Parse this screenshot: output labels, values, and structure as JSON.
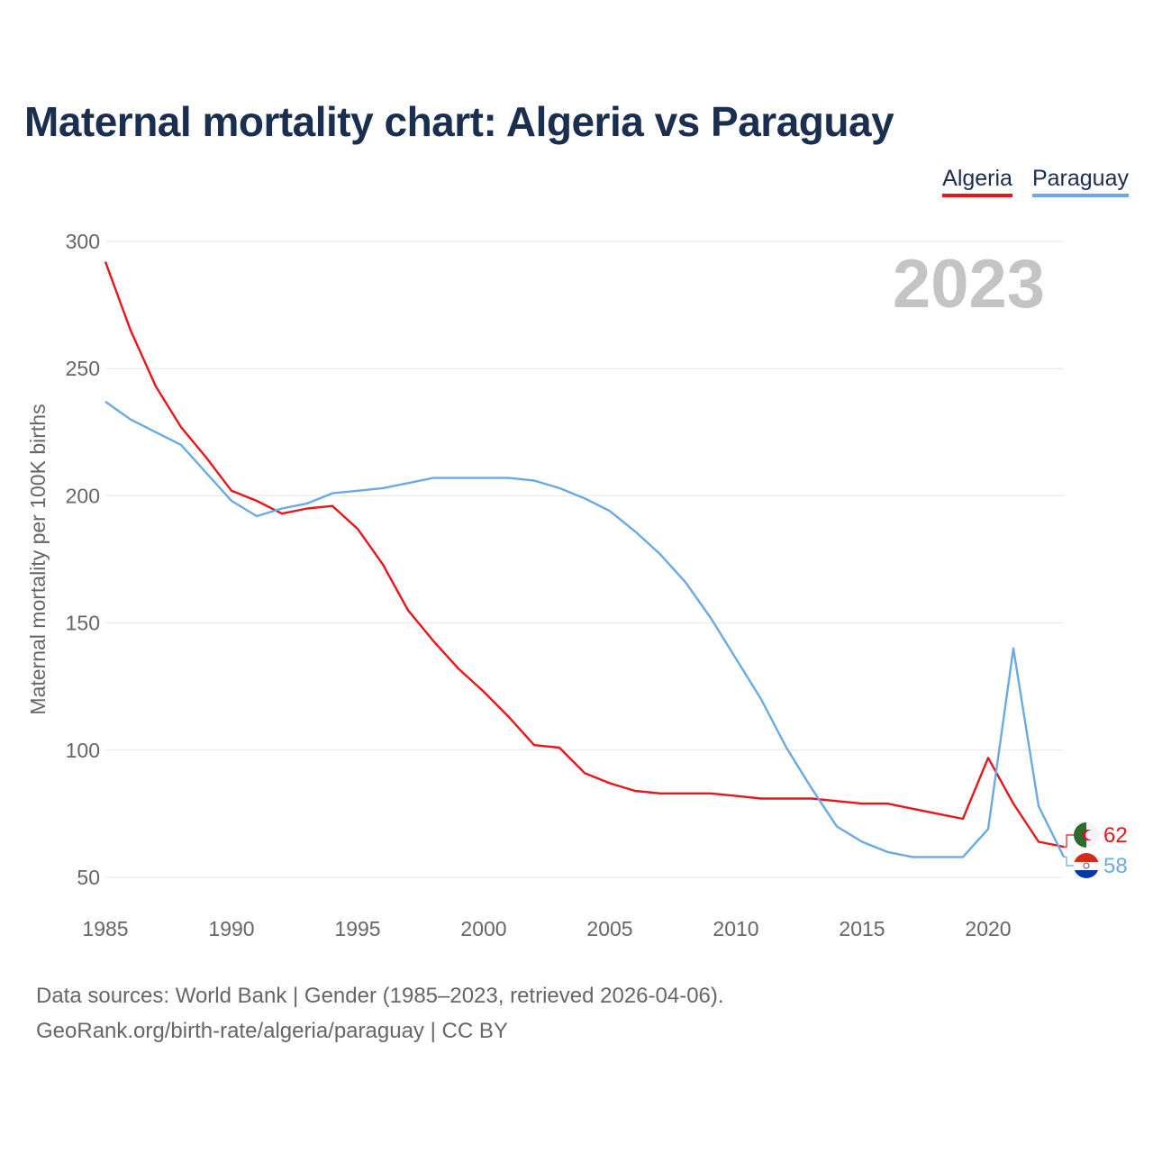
{
  "title": "Maternal mortality chart: Algeria vs Paraguay",
  "colors": {
    "algeria": "#e8161b",
    "paraguay": "#6aaae4",
    "title": "#1a2e4f"
  },
  "legend": [
    {
      "label": "Algeria",
      "color": "#e8161b"
    },
    {
      "label": "Paraguay",
      "color": "#6aaae4"
    }
  ],
  "chart_data": {
    "type": "line",
    "title": "Maternal mortality chart: Algeria vs Paraguay",
    "xlabel": "",
    "ylabel": "Maternal mortality per 100K births",
    "xlim": [
      1985,
      2023
    ],
    "ylim": [
      50,
      300
    ],
    "x_ticks": [
      1985,
      1990,
      1995,
      2000,
      2005,
      2010,
      2015,
      2020
    ],
    "y_ticks": [
      50,
      100,
      150,
      200,
      250,
      300
    ],
    "grid": true,
    "legend_position": "top-right",
    "watermark_year": "2023",
    "x": [
      1985,
      1986,
      1987,
      1988,
      1989,
      1990,
      1991,
      1992,
      1993,
      1994,
      1995,
      1996,
      1997,
      1998,
      1999,
      2000,
      2001,
      2002,
      2003,
      2004,
      2005,
      2006,
      2007,
      2008,
      2009,
      2010,
      2011,
      2012,
      2013,
      2014,
      2015,
      2016,
      2017,
      2018,
      2019,
      2020,
      2021,
      2022,
      2023
    ],
    "series": [
      {
        "name": "Algeria",
        "color": "#e8161b",
        "end_label": "62",
        "values": [
          292,
          265,
          243,
          227,
          215,
          202,
          198,
          193,
          195,
          196,
          187,
          173,
          155,
          143,
          132,
          123,
          113,
          102,
          101,
          91,
          87,
          84,
          83,
          83,
          83,
          82,
          81,
          81,
          81,
          80,
          79,
          79,
          77,
          75,
          73,
          97,
          79,
          64,
          62
        ]
      },
      {
        "name": "Paraguay",
        "color": "#6aaae4",
        "end_label": "58",
        "values": [
          237,
          230,
          225,
          220,
          209,
          198,
          192,
          195,
          197,
          201,
          202,
          203,
          205,
          207,
          207,
          207,
          207,
          206,
          203,
          199,
          194,
          186,
          177,
          166,
          152,
          136,
          120,
          101,
          85,
          70,
          64,
          60,
          58,
          58,
          58,
          69,
          140,
          78,
          58
        ]
      }
    ]
  },
  "footer": {
    "line1": "Data sources: World Bank | Gender (1985–2023, retrieved 2026-04-06).",
    "line2": "GeoRank.org/birth-rate/algeria/paraguay | CC BY"
  }
}
